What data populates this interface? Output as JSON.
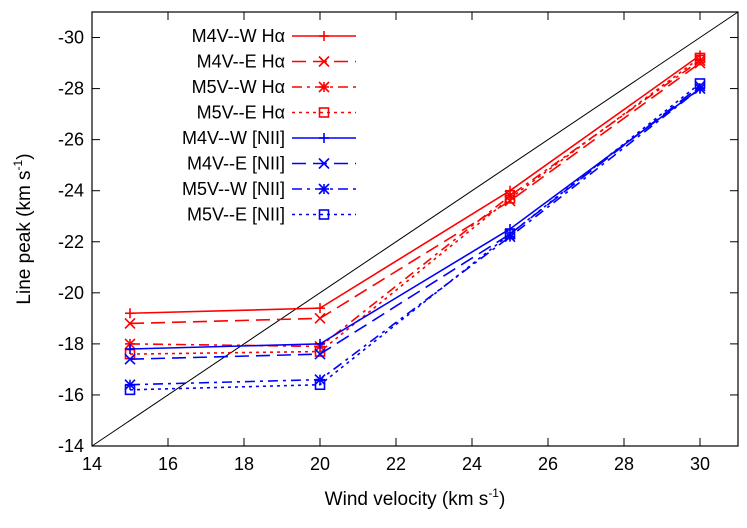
{
  "chart_data": {
    "type": "line",
    "xlabel": "Wind velocity (km s",
    "xlabel_sup": "-1",
    "xlabel_tail": ")",
    "ylabel": "Line peak (km s",
    "ylabel_sup": "-1",
    "ylabel_tail": ")",
    "xlim": [
      14,
      31
    ],
    "ylim": [
      -14,
      -31
    ],
    "xticks": [
      14,
      16,
      18,
      20,
      22,
      24,
      26,
      28,
      30
    ],
    "yticks": [
      -14,
      -16,
      -18,
      -20,
      -22,
      -24,
      -26,
      -28,
      -30
    ],
    "grid": false,
    "legend_position": "top-left",
    "x": [
      15,
      20,
      25,
      30
    ],
    "reference_line": {
      "x": [
        14,
        31
      ],
      "y": [
        -14,
        -31
      ]
    },
    "series": [
      {
        "name": "M4V--W Hα",
        "color": "#ff0000",
        "dash": "none",
        "marker": "plus",
        "values": [
          -19.2,
          -19.4,
          -24.0,
          -29.3
        ]
      },
      {
        "name": "M4V--E Hα",
        "color": "#ff0000",
        "dash": "long",
        "marker": "x",
        "values": [
          -18.8,
          -19.0,
          -23.6,
          -29.0
        ]
      },
      {
        "name": "M5V--W Hα",
        "color": "#ff0000",
        "dash": "dashdot",
        "marker": "star",
        "values": [
          -18.0,
          -17.9,
          -23.8,
          -29.1
        ]
      },
      {
        "name": "M5V--E Hα",
        "color": "#ff0000",
        "dash": "dot",
        "marker": "square",
        "values": [
          -17.6,
          -17.7,
          -23.7,
          -29.2
        ]
      },
      {
        "name": "M4V--W [NII]",
        "color": "#0000ff",
        "dash": "none",
        "marker": "plus",
        "values": [
          -17.8,
          -18.0,
          -22.5,
          -28.0
        ]
      },
      {
        "name": "M4V--E [NII]",
        "color": "#0000ff",
        "dash": "long",
        "marker": "x",
        "values": [
          -17.4,
          -17.6,
          -22.3,
          -28.1
        ]
      },
      {
        "name": "M5V--W [NII]",
        "color": "#0000ff",
        "dash": "dashdot",
        "marker": "star",
        "values": [
          -16.4,
          -16.6,
          -22.2,
          -28.0
        ]
      },
      {
        "name": "M5V--E [NII]",
        "color": "#0000ff",
        "dash": "dot",
        "marker": "square",
        "values": [
          -16.2,
          -16.4,
          -22.3,
          -28.2
        ]
      }
    ]
  }
}
